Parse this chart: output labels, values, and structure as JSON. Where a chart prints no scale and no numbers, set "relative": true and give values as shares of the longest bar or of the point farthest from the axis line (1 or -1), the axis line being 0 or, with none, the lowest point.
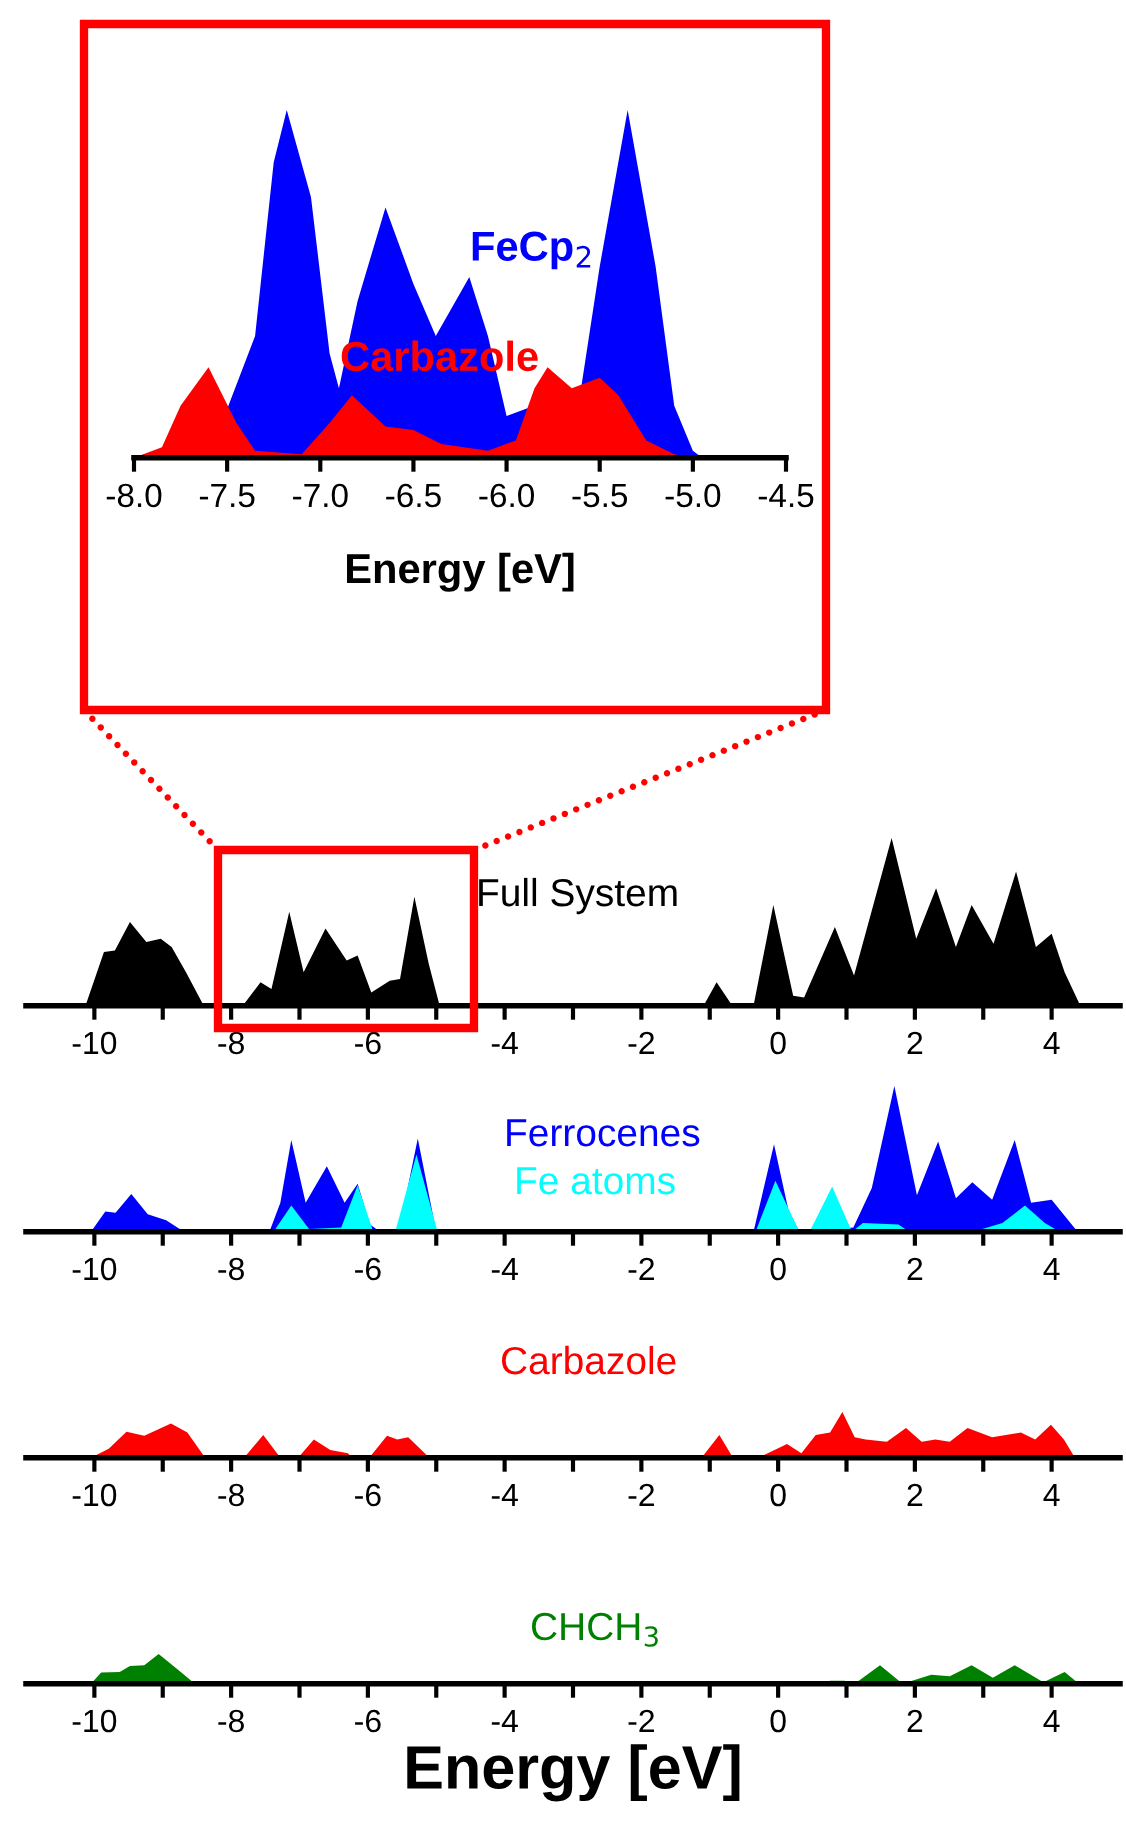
{
  "chart_data": [
    {
      "type": "area",
      "relative": true,
      "xlabel": "Energy [eV]",
      "xlim": [
        -8.0,
        -4.5
      ],
      "xticks": [
        {
          "value": -8.0,
          "label": "-8.0"
        },
        {
          "value": -7.5,
          "label": "-7.5"
        },
        {
          "value": -7.0,
          "label": "-7.0"
        },
        {
          "value": -6.5,
          "label": "-6.5"
        },
        {
          "value": -6.0,
          "label": "-6.0"
        },
        {
          "value": -5.5,
          "label": "-5.5"
        },
        {
          "value": -5.0,
          "label": "-5.0"
        },
        {
          "value": -4.5,
          "label": "-4.5"
        }
      ],
      "legend": false,
      "series": [
        {
          "name": "FeCp$_{2}$",
          "color": "#0000ff",
          "x": [
            -7.6,
            -7.35,
            -7.25,
            -7.18,
            -7.05,
            -6.95,
            -6.9,
            -6.8,
            -6.65,
            -6.5,
            -6.38,
            -6.2,
            -6.1,
            -6.0,
            -5.6,
            -5.5,
            -5.35,
            -5.2,
            -5.1,
            -5.0,
            -4.95
          ],
          "values": [
            0,
            0.35,
            0.85,
            1.0,
            0.75,
            0.3,
            0.2,
            0.45,
            0.72,
            0.5,
            0.35,
            0.52,
            0.35,
            0.12,
            0.2,
            0.55,
            1.0,
            0.55,
            0.15,
            0.02,
            0
          ]
        },
        {
          "name": "Carbazole",
          "color": "#ff0000",
          "x": [
            -8.0,
            -7.85,
            -7.75,
            -7.6,
            -7.45,
            -7.35,
            -7.1,
            -6.95,
            -6.83,
            -6.65,
            -6.5,
            -6.35,
            -6.1,
            -5.95,
            -5.85,
            -5.78,
            -5.65,
            -5.5,
            -5.4,
            -5.25,
            -5.1,
            -5.0
          ],
          "values": [
            0,
            0.03,
            0.15,
            0.26,
            0.1,
            0.02,
            0.01,
            0.1,
            0.18,
            0.09,
            0.08,
            0.04,
            0.02,
            0.05,
            0.2,
            0.26,
            0.2,
            0.23,
            0.18,
            0.05,
            0.01,
            0
          ]
        }
      ]
    },
    {
      "type": "area",
      "relative": true,
      "xlim": [
        -11,
        5
      ],
      "xticks": [
        {
          "value": -10,
          "label": "-10"
        },
        {
          "value": -9,
          "label": null
        },
        {
          "value": -8,
          "label": "-8"
        },
        {
          "value": -7,
          "label": null
        },
        {
          "value": -6,
          "label": "-6"
        },
        {
          "value": -5,
          "label": null
        },
        {
          "value": -4,
          "label": "-4"
        },
        {
          "value": -3,
          "label": null
        },
        {
          "value": -2,
          "label": "-2"
        },
        {
          "value": -1,
          "label": null
        },
        {
          "value": 0,
          "label": "0"
        },
        {
          "value": 1,
          "label": null
        },
        {
          "value": 2,
          "label": "2"
        },
        {
          "value": 3,
          "label": null
        },
        {
          "value": 4,
          "label": "4"
        }
      ],
      "legend": false,
      "series": [
        {
          "name": "Full System",
          "color": "#000000",
          "x": [
            -10.13,
            -9.86,
            -9.7,
            -9.48,
            -9.24,
            -9.03,
            -8.87,
            -8.66,
            -8.4,
            -7.83,
            -7.57,
            -7.41,
            -7.15,
            -6.94,
            -6.62,
            -6.31,
            -6.15,
            -5.95,
            -5.68,
            -5.53,
            -5.32,
            -5.11,
            -4.95,
            -1.09,
            -0.9,
            -0.67,
            -0.36,
            -0.07,
            0.22,
            0.38,
            0.83,
            1.11,
            1.66,
            2.02,
            2.31,
            2.6,
            2.83,
            3.15,
            3.48,
            3.77,
            4.0,
            4.19,
            4.42
          ],
          "values": [
            0,
            0.32,
            0.33,
            0.5,
            0.38,
            0.4,
            0.35,
            0.2,
            0,
            0,
            0.14,
            0.1,
            0.56,
            0.2,
            0.46,
            0.27,
            0.3,
            0.08,
            0.15,
            0.16,
            0.65,
            0.25,
            0,
            0,
            0.14,
            0,
            0,
            0.6,
            0.06,
            0.05,
            0.47,
            0.18,
            1.0,
            0.4,
            0.7,
            0.35,
            0.6,
            0.37,
            0.8,
            0.35,
            0.43,
            0.2,
            0
          ]
        }
      ]
    },
    {
      "type": "area",
      "relative": true,
      "xlim": [
        -11,
        5
      ],
      "xticks": [
        {
          "value": -10,
          "label": "-10"
        },
        {
          "value": -9,
          "label": null
        },
        {
          "value": -8,
          "label": "-8"
        },
        {
          "value": -7,
          "label": null
        },
        {
          "value": -6,
          "label": "-6"
        },
        {
          "value": -5,
          "label": null
        },
        {
          "value": -4,
          "label": "-4"
        },
        {
          "value": -3,
          "label": null
        },
        {
          "value": -2,
          "label": "-2"
        },
        {
          "value": -1,
          "label": null
        },
        {
          "value": 0,
          "label": "0"
        },
        {
          "value": 1,
          "label": null
        },
        {
          "value": 2,
          "label": "2"
        },
        {
          "value": 3,
          "label": null
        },
        {
          "value": 4,
          "label": "4"
        }
      ],
      "legend": false,
      "series": [
        {
          "name": "Ferrocenes",
          "color": "#0000ff",
          "x": [
            -10.05,
            -9.84,
            -9.69,
            -9.46,
            -9.22,
            -8.95,
            -8.69,
            -7.44,
            -7.28,
            -7.12,
            -6.91,
            -6.6,
            -6.34,
            -6.15,
            -5.97,
            -5.82,
            -5.55,
            -5.27,
            -5.0,
            -0.36,
            -0.06,
            0.15,
            0.31,
            1.1,
            1.37,
            1.7,
            2.03,
            2.34,
            2.6,
            2.84,
            3.13,
            3.46,
            3.7,
            4.0,
            4.38
          ],
          "values": [
            0,
            0.14,
            0.13,
            0.26,
            0.12,
            0.08,
            0,
            0,
            0.2,
            0.63,
            0.2,
            0.45,
            0.2,
            0.33,
            0.05,
            0,
            0,
            0.64,
            0,
            0,
            0.6,
            0.15,
            0,
            0.03,
            0.3,
            1.0,
            0.25,
            0.62,
            0.23,
            0.34,
            0.22,
            0.63,
            0.2,
            0.22,
            0
          ]
        },
        {
          "name": "Fe atoms",
          "color": "#00ffff",
          "x": [
            -7.38,
            -7.12,
            -6.86,
            -6.39,
            -6.15,
            -5.92,
            -5.6,
            -5.29,
            -4.98,
            -0.33,
            -0.04,
            0.31,
            0.46,
            0.79,
            1.08,
            1.24,
            1.76,
            1.92,
            2.85,
            3.28,
            3.61,
            3.9,
            4.12
          ],
          "values": [
            0,
            0.18,
            0.02,
            0.03,
            0.32,
            0,
            0,
            0.53,
            0,
            0,
            0.35,
            0,
            0,
            0.31,
            0,
            0.06,
            0.05,
            0,
            0,
            0.06,
            0.18,
            0.06,
            0
          ]
        }
      ]
    },
    {
      "type": "area",
      "relative": true,
      "xlim": [
        -11,
        5
      ],
      "xticks": [
        {
          "value": -10,
          "label": "-10"
        },
        {
          "value": -9,
          "label": null
        },
        {
          "value": -8,
          "label": "-8"
        },
        {
          "value": -7,
          "label": null
        },
        {
          "value": -6,
          "label": "-6"
        },
        {
          "value": -5,
          "label": null
        },
        {
          "value": -4,
          "label": "-4"
        },
        {
          "value": -3,
          "label": null
        },
        {
          "value": -2,
          "label": "-2"
        },
        {
          "value": -1,
          "label": null
        },
        {
          "value": 0,
          "label": "0"
        },
        {
          "value": 1,
          "label": null
        },
        {
          "value": 2,
          "label": "2"
        },
        {
          "value": 3,
          "label": null
        },
        {
          "value": 4,
          "label": "4"
        }
      ],
      "legend": false,
      "series": [
        {
          "name": "Carbazole",
          "color": "#ff0000",
          "x": [
            -10.05,
            -9.79,
            -9.53,
            -9.27,
            -8.88,
            -8.64,
            -8.38,
            -7.81,
            -7.53,
            -7.28,
            -7.02,
            -6.79,
            -6.55,
            -6.29,
            -6.24,
            -5.98,
            -5.72,
            -5.57,
            -5.41,
            -5.1,
            -1.12,
            -0.86,
            -0.66,
            -0.29,
            0.13,
            0.34,
            0.55,
            0.76,
            0.94,
            1.12,
            1.28,
            1.59,
            1.87,
            2.1,
            2.3,
            2.51,
            2.77,
            3.13,
            3.55,
            3.76,
            3.99,
            4.18,
            4.34
          ],
          "values": [
            0,
            0.2,
            0.57,
            0.48,
            0.75,
            0.55,
            0,
            0,
            0.5,
            0,
            0,
            0.4,
            0.17,
            0.1,
            0,
            0,
            0.48,
            0.4,
            0.45,
            0,
            0,
            0.5,
            0,
            0,
            0.3,
            0.1,
            0.5,
            0.55,
            1.0,
            0.45,
            0.4,
            0.35,
            0.65,
            0.35,
            0.4,
            0.35,
            0.65,
            0.45,
            0.55,
            0.4,
            0.72,
            0.4,
            0
          ]
        }
      ]
    },
    {
      "type": "area",
      "relative": true,
      "xlabel": "Energy [eV]",
      "xlim": [
        -11,
        5
      ],
      "xticks": [
        {
          "value": -10,
          "label": "-10"
        },
        {
          "value": -9,
          "label": null
        },
        {
          "value": -8,
          "label": "-8"
        },
        {
          "value": -7,
          "label": null
        },
        {
          "value": -6,
          "label": "-6"
        },
        {
          "value": -5,
          "label": null
        },
        {
          "value": -4,
          "label": "-4"
        },
        {
          "value": -3,
          "label": null
        },
        {
          "value": -2,
          "label": "-2"
        },
        {
          "value": -1,
          "label": null
        },
        {
          "value": 0,
          "label": "0"
        },
        {
          "value": 1,
          "label": null
        },
        {
          "value": 2,
          "label": "2"
        },
        {
          "value": 3,
          "label": null
        },
        {
          "value": 4,
          "label": "4"
        }
      ],
      "legend": false,
      "series": [
        {
          "name": "CHCH$_{3}$",
          "color": "#008000",
          "x": [
            -10.05,
            -9.9,
            -9.63,
            -9.48,
            -9.27,
            -9.06,
            -8.79,
            -8.53,
            0.65,
            0.76,
            0.97,
            1.12,
            1.49,
            1.82,
            2.24,
            2.51,
            2.83,
            3.14,
            3.46,
            3.88,
            4.19,
            4.4
          ],
          "values": [
            0,
            0.38,
            0.4,
            0.6,
            0.62,
            1.0,
            0.5,
            0,
            0,
            0.1,
            0.1,
            0,
            0.62,
            0,
            0.3,
            0.25,
            0.62,
            0.2,
            0.62,
            0.05,
            0.4,
            0
          ]
        }
      ]
    }
  ]
}
